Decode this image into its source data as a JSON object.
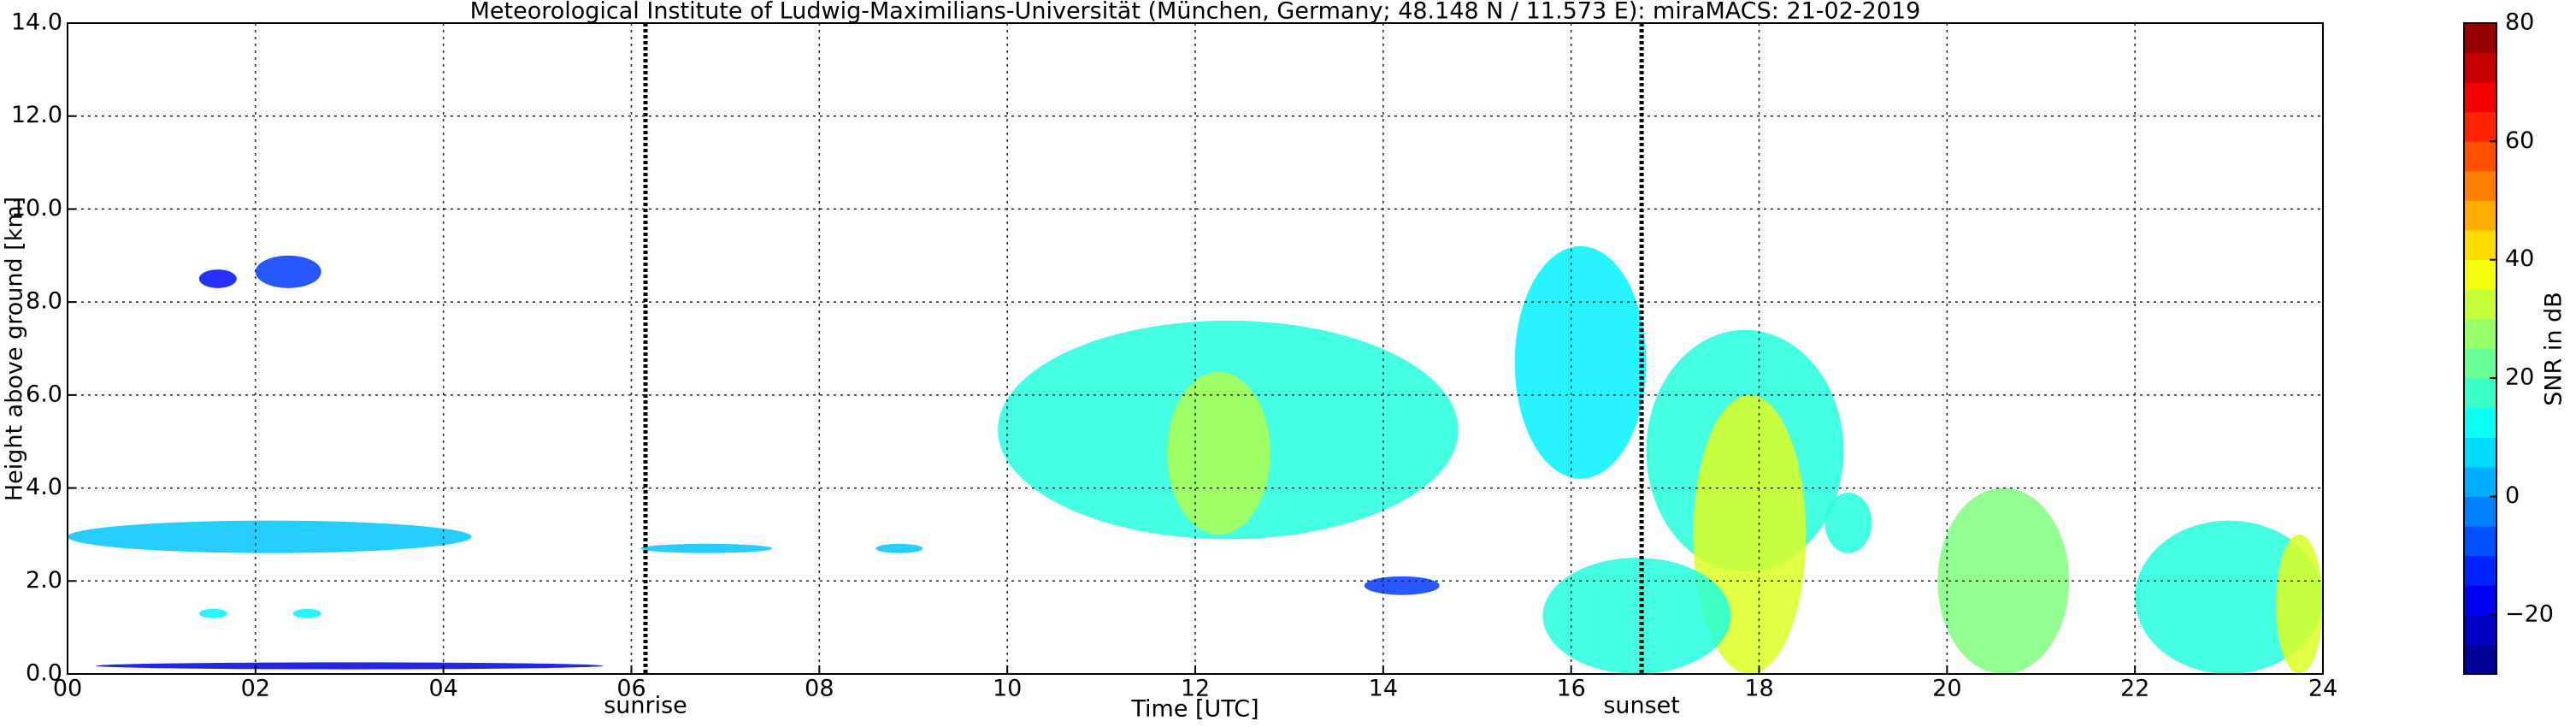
{
  "chart_data": {
    "type": "time-height",
    "title": "Meteorological Institute of Ludwig-Maximilians-Universität (München, Germany; 48.148 N / 11.573 E):    miraMACS: 21-02-2019",
    "x_label": "Time [UTC]",
    "y_label": "Height above ground [km]",
    "colorbar_label": "SNR in dB",
    "colormap": "jet",
    "grid": true,
    "xlim": [
      0,
      24
    ],
    "xticks": [
      {
        "value": 0,
        "label": "00"
      },
      {
        "value": 2,
        "label": "02"
      },
      {
        "value": 4,
        "label": "04"
      },
      {
        "value": 6,
        "label": "06"
      },
      {
        "value": 8,
        "label": "08"
      },
      {
        "value": 10,
        "label": "10"
      },
      {
        "value": 12,
        "label": "12"
      },
      {
        "value": 14,
        "label": "14"
      },
      {
        "value": 16,
        "label": "16"
      },
      {
        "value": 18,
        "label": "18"
      },
      {
        "value": 20,
        "label": "20"
      },
      {
        "value": 22,
        "label": "22"
      },
      {
        "value": 24,
        "label": "24"
      }
    ],
    "ylim": [
      0,
      14
    ],
    "yticks": [
      {
        "value": 0,
        "label": "0.0"
      },
      {
        "value": 2,
        "label": "2.0"
      },
      {
        "value": 4,
        "label": "4.0"
      },
      {
        "value": 6,
        "label": "6.0"
      },
      {
        "value": 8,
        "label": "8.0"
      },
      {
        "value": 10,
        "label": "10.0"
      },
      {
        "value": 12,
        "label": "12.0"
      },
      {
        "value": 14,
        "label": "14.0"
      }
    ],
    "clim": [
      -30,
      80
    ],
    "cticks": [
      {
        "value": -20,
        "label": "−20"
      },
      0,
      20,
      40,
      60,
      80
    ],
    "annotations": [
      {
        "text": "sunrise",
        "x": 6.15
      },
      {
        "text": "sunset",
        "x": 16.75
      }
    ],
    "echoes": [
      {
        "x": [
          0,
          4.3
        ],
        "y": [
          2.6,
          3.3
        ],
        "snr": 5
      },
      {
        "x": [
          6.1,
          7.5
        ],
        "y": [
          2.6,
          2.8
        ],
        "snr": 5
      },
      {
        "x": [
          8.6,
          9.1
        ],
        "y": [
          2.6,
          2.8
        ],
        "snr": 5
      },
      {
        "x": [
          1.4,
          1.8
        ],
        "y": [
          8.3,
          8.7
        ],
        "snr": -15
      },
      {
        "x": [
          2.0,
          2.7
        ],
        "y": [
          8.3,
          9.0
        ],
        "snr": -10
      },
      {
        "x": [
          1.4,
          1.7
        ],
        "y": [
          1.2,
          1.4
        ],
        "snr": 10
      },
      {
        "x": [
          2.4,
          2.7
        ],
        "y": [
          1.2,
          1.4
        ],
        "snr": 10
      },
      {
        "x": [
          0.3,
          5.7
        ],
        "y": [
          0.1,
          0.25
        ],
        "snr": -20
      },
      {
        "x": [
          9.9,
          14.8
        ],
        "y": [
          2.9,
          7.6
        ],
        "snr": 15
      },
      {
        "x": [
          11.7,
          12.8
        ],
        "y": [
          3.0,
          6.5
        ],
        "snr": 30
      },
      {
        "x": [
          13.8,
          14.6
        ],
        "y": [
          1.7,
          2.1
        ],
        "snr": -10
      },
      {
        "x": [
          15.4,
          16.8
        ],
        "y": [
          4.2,
          9.2
        ],
        "snr": 10
      },
      {
        "x": [
          16.8,
          18.9
        ],
        "y": [
          2.2,
          7.4
        ],
        "snr": 15
      },
      {
        "x": [
          17.3,
          18.5
        ],
        "y": [
          0,
          6
        ],
        "snr": 35
      },
      {
        "x": [
          18.7,
          19.2
        ],
        "y": [
          2.6,
          3.9
        ],
        "snr": 15
      },
      {
        "x": [
          15.7,
          17.7
        ],
        "y": [
          0,
          2.5
        ],
        "snr": 15
      },
      {
        "x": [
          19.9,
          21.3
        ],
        "y": [
          0,
          4
        ],
        "snr": 25
      },
      {
        "x": [
          22.0,
          24
        ],
        "y": [
          0,
          3.3
        ],
        "snr": 15
      },
      {
        "x": [
          23.5,
          24
        ],
        "y": [
          0,
          3.0
        ],
        "snr": 35
      }
    ]
  }
}
